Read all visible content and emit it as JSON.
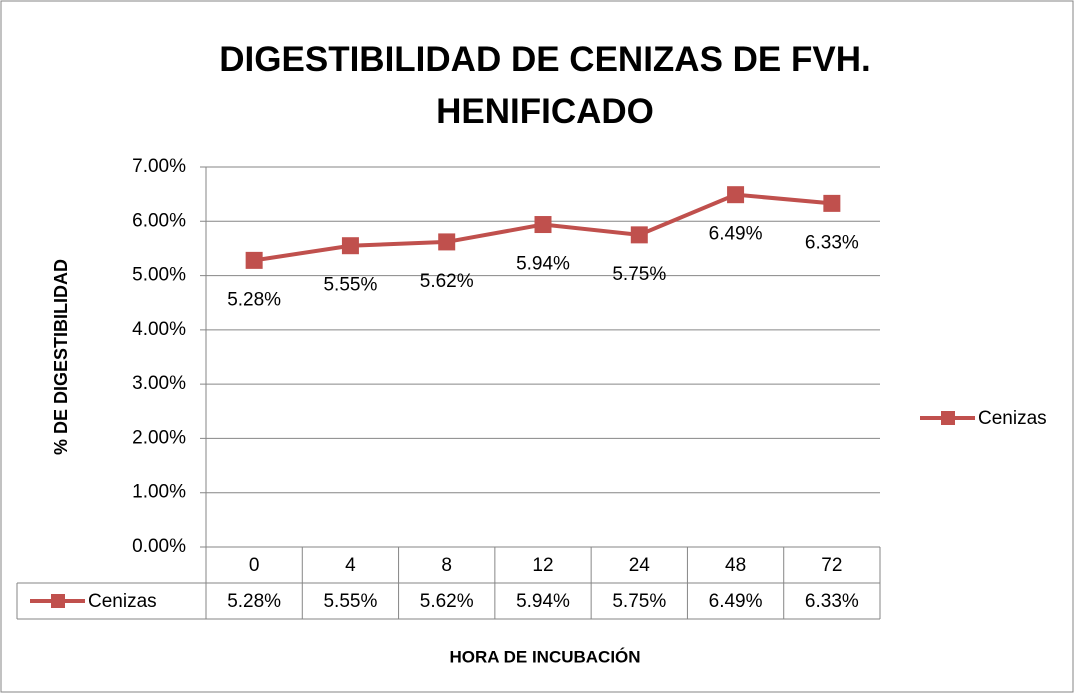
{
  "chart_data": {
    "type": "line",
    "title": "DIGESTIBILIDAD DE CENIZAS DE FVH. HENIFICADO",
    "x_label": "HORA DE INCUBACIÓN",
    "y_label": "%   DE DIGESTIBILIDAD",
    "categories": [
      "0",
      "4",
      "8",
      "12",
      "24",
      "48",
      "72"
    ],
    "series": [
      {
        "name": "Cenizas",
        "color": "#c0504d",
        "values": [
          5.28,
          5.55,
          5.62,
          5.94,
          5.75,
          6.49,
          6.33
        ],
        "value_labels": [
          "5.28%",
          "5.55%",
          "5.62%",
          "5.94%",
          "5.75%",
          "6.49%",
          "6.33%"
        ]
      }
    ],
    "ylim": [
      0,
      7
    ],
    "yticks": [
      {
        "value": 0,
        "label": "0.00%"
      },
      {
        "value": 1,
        "label": "1.00%"
      },
      {
        "value": 2,
        "label": "2.00%"
      },
      {
        "value": 3,
        "label": "3.00%"
      },
      {
        "value": 4,
        "label": "4.00%"
      },
      {
        "value": 5,
        "label": "5.00%"
      },
      {
        "value": 6,
        "label": "6.00%"
      },
      {
        "value": 7,
        "label": "7.00%"
      }
    ],
    "grid": true,
    "legend": "right",
    "data_table": true
  }
}
